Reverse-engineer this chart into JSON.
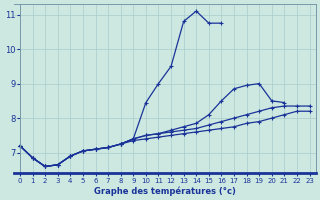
{
  "xlabel": "Graphe des températures (°c)",
  "background_color": "#cce8e0",
  "grid_color": "#aacccc",
  "line_color": "#1a3399",
  "xlim": [
    -0.5,
    23.5
  ],
  "ylim": [
    6.4,
    11.3
  ],
  "xticks": [
    0,
    1,
    2,
    3,
    4,
    5,
    6,
    7,
    8,
    9,
    10,
    11,
    12,
    13,
    14,
    15,
    16,
    17,
    18,
    19,
    20,
    21,
    22,
    23
  ],
  "yticks": [
    7,
    8,
    9,
    10,
    11
  ],
  "curves": [
    {
      "x": [
        0,
        1,
        2,
        3,
        4,
        5,
        6,
        7,
        8,
        9,
        10,
        11,
        12,
        13,
        14,
        15,
        16,
        17,
        18,
        19,
        20
      ],
      "y": [
        7.2,
        6.85,
        6.6,
        6.65,
        6.9,
        7.05,
        7.1,
        7.15,
        7.25,
        7.4,
        8.45,
        9.0,
        9.5,
        10.8,
        11.1,
        10.75,
        10.75,
        null,
        null,
        null,
        null
      ]
    },
    {
      "x": [
        0,
        1,
        2,
        3,
        4,
        5,
        6,
        7,
        8,
        9,
        10,
        11,
        12,
        13,
        14,
        15,
        16,
        17,
        18,
        19,
        20,
        21,
        22,
        23
      ],
      "y": [
        7.2,
        6.85,
        6.6,
        6.65,
        6.9,
        7.05,
        7.1,
        7.15,
        7.25,
        7.4,
        7.5,
        7.55,
        7.65,
        7.75,
        7.85,
        8.1,
        8.5,
        8.85,
        8.95,
        9.0,
        8.5,
        8.45,
        null,
        null
      ]
    },
    {
      "x": [
        0,
        1,
        2,
        3,
        4,
        5,
        6,
        7,
        8,
        9,
        10,
        11,
        12,
        13,
        14,
        15,
        16,
        17,
        18,
        19,
        20,
        21,
        22,
        23
      ],
      "y": [
        7.2,
        6.85,
        6.6,
        6.65,
        6.9,
        7.05,
        7.1,
        7.15,
        7.25,
        7.4,
        7.5,
        7.55,
        7.6,
        7.65,
        7.7,
        7.8,
        7.9,
        8.0,
        8.1,
        8.2,
        8.3,
        8.35,
        8.35,
        8.35
      ]
    },
    {
      "x": [
        0,
        1,
        2,
        3,
        4,
        5,
        6,
        7,
        8,
        9,
        10,
        11,
        12,
        13,
        14,
        15,
        16,
        17,
        18,
        19,
        20,
        21,
        22,
        23
      ],
      "y": [
        7.2,
        6.85,
        6.6,
        6.65,
        6.9,
        7.05,
        7.1,
        7.15,
        7.25,
        7.35,
        7.4,
        7.45,
        7.5,
        7.55,
        7.6,
        7.65,
        7.7,
        7.75,
        7.85,
        7.9,
        8.0,
        8.1,
        8.2,
        8.2
      ]
    }
  ]
}
